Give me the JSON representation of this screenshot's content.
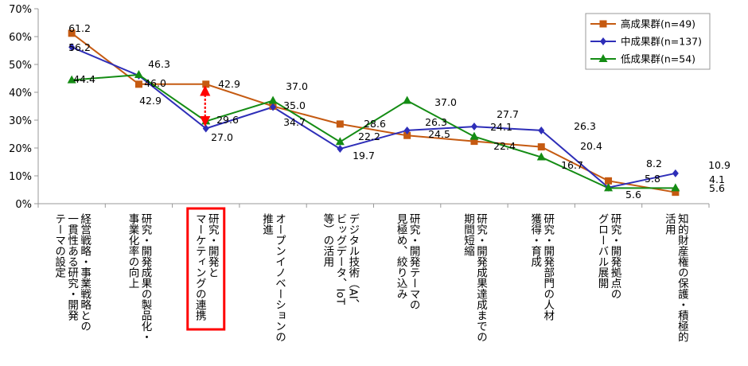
{
  "chart_data": {
    "type": "line",
    "categories": [
      "経営戦略・事業戦略との一貫性ある研究・開発テーマの設定",
      "研究・開発成果の製品化・事業化率の向上",
      "研究・開発とマーケティングの連携",
      "オープンイノベーションの推進",
      "デジタル技術（AI、ビッグデータ、IoT等）の活用",
      "研究・開発テーマの見極め、絞り込み",
      "研究・開発成果達成までの期間短縮",
      "研究・開発部門の人材獲得・育成",
      "研究・開発拠点のグローバル展開",
      "知的財産権の保護・積極的活用"
    ],
    "category_lines": [
      [
        "経営戦略・事業戦略との",
        "一貫性ある研究・開発",
        "テーマの設定"
      ],
      [
        "研究・開発成果の製品化・",
        "事業化率の向上"
      ],
      [
        "研究・開発と",
        "マーケティングの連携"
      ],
      [
        "オープンイノベーションの",
        "推進"
      ],
      [
        "デジタル技術（AI、",
        "ビッグデータ、IoT",
        "等）の活用"
      ],
      [
        "研究・開発テーマの",
        "見極め、絞り込み"
      ],
      [
        "研究・開発成果達成までの",
        "期間短縮"
      ],
      [
        "研究・開発部門の人材",
        "獲得・育成"
      ],
      [
        "研究・開発拠点の",
        "グローバル展開"
      ],
      [
        "知的財産権の保護・積極的",
        "活用"
      ]
    ],
    "series": [
      {
        "name": "高成果群(n=49)",
        "values": [
          61.2,
          42.9,
          42.9,
          35.0,
          28.6,
          24.5,
          22.4,
          20.4,
          8.2,
          4.1
        ],
        "color": "#c55a11",
        "marker": "square"
      },
      {
        "name": "中成果群(n=137)",
        "values": [
          56.2,
          46.0,
          27.0,
          34.7,
          19.7,
          26.3,
          27.7,
          26.3,
          5.8,
          10.9
        ],
        "color": "#2e2eb8",
        "marker": "diamond"
      },
      {
        "name": "低成果群(n=54)",
        "values": [
          44.4,
          46.3,
          29.6,
          37.0,
          22.2,
          37.0,
          24.1,
          16.7,
          5.6,
          5.6
        ],
        "color": "#148c14",
        "marker": "triangle"
      }
    ],
    "data_labels": [
      {
        "text": "61.2"
      },
      {
        "text": "56.2"
      },
      {
        "text": "44.4"
      },
      {
        "text": "46.3"
      },
      {
        "text": "46.0"
      },
      {
        "text": "42.9"
      },
      {
        "text": "42.9"
      },
      {
        "text": "29.6"
      },
      {
        "text": "27.0"
      },
      {
        "text": "37.0"
      },
      {
        "text": "35.0"
      },
      {
        "text": "34.7"
      },
      {
        "text": "28.6"
      },
      {
        "text": "22.2"
      },
      {
        "text": "19.7"
      },
      {
        "text": "37.0"
      },
      {
        "text": "26.3"
      },
      {
        "text": "24.5"
      },
      {
        "text": "27.7"
      },
      {
        "text": "24.1"
      },
      {
        "text": "22.4"
      },
      {
        "text": "26.3"
      },
      {
        "text": "20.4"
      },
      {
        "text": "16.7"
      },
      {
        "text": "8.2"
      },
      {
        "text": "5.8"
      },
      {
        "text": "5.6"
      },
      {
        "text": "10.9"
      },
      {
        "text": "4.1"
      },
      {
        "text": "5.6"
      }
    ],
    "y_ticks": [
      "0%",
      "10%",
      "20%",
      "30%",
      "40%",
      "50%",
      "60%",
      "70%"
    ],
    "ylim": [
      0,
      70
    ],
    "grid": false,
    "legend_position": "top-right",
    "highlight_category": "研究・開発とマーケティングの連携",
    "highlight_color": "#ff0000",
    "axis_color": "#999999",
    "background": "#ffffff",
    "title": "",
    "xlabel": "",
    "ylabel": ""
  }
}
